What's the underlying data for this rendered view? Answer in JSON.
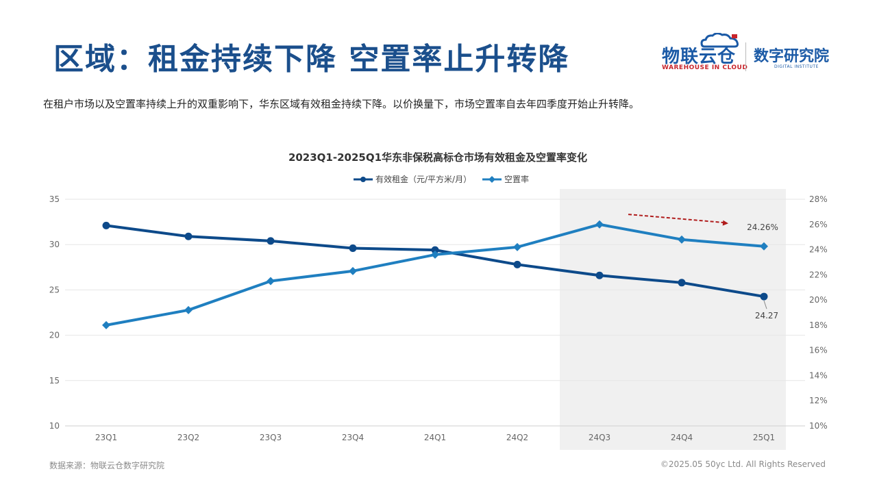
{
  "header": {
    "title": "区域：租金持续下降 空置率止升转降",
    "subtitle": "在租户市场以及空置率持续上升的双重影响下，华东区域有效租金持续下降。以价换量下，市场空置率自去年四季度开始止升转降。"
  },
  "logo": {
    "brand": "物联云仓",
    "brand_en": "WAREHOUSE IN CLOUD",
    "institute": "数字研究院",
    "institute_en": "DIGITAL INSTITUTE"
  },
  "chart_data": {
    "type": "line",
    "title": "2023Q1-2025Q1华东非保税高标仓市场有效租金及空置率变化",
    "categories": [
      "23Q1",
      "23Q2",
      "23Q3",
      "23Q4",
      "24Q1",
      "24Q2",
      "24Q3",
      "24Q4",
      "25Q1"
    ],
    "series": [
      {
        "name": "有效租金（元/平方米/月）",
        "axis": "left",
        "color": "#0d4a8a",
        "marker": "circle",
        "values": [
          32.1,
          30.9,
          30.4,
          29.6,
          29.4,
          27.8,
          26.6,
          25.8,
          24.27
        ]
      },
      {
        "name": "空置率",
        "axis": "right",
        "color": "#1f7fc0",
        "marker": "diamond",
        "values": [
          0.18,
          0.192,
          0.215,
          0.223,
          0.236,
          0.242,
          0.26,
          0.248,
          0.2426
        ]
      }
    ],
    "left_axis": {
      "min": 10,
      "max": 35,
      "ticks": [
        "10",
        "15",
        "20",
        "25",
        "30",
        "35"
      ]
    },
    "right_axis": {
      "min": 0.1,
      "max": 0.28,
      "ticks": [
        "10%",
        "12%",
        "14%",
        "16%",
        "18%",
        "20%",
        "22%",
        "24%",
        "26%",
        "28%"
      ]
    },
    "grid": true,
    "legend_position": "top-center",
    "highlight_categories": [
      "24Q3",
      "24Q4",
      "25Q1"
    ],
    "highlight_color": "#f0f0f0",
    "annotations": {
      "last_rent_label": "24.27",
      "last_vacancy_label": "24.26%",
      "trend_arrow_color": "#b01c1c"
    }
  },
  "footer": {
    "source": "数据来源：物联云仓数字研究院",
    "copyright": "©2025.05 50yc Ltd. All Rights Reserved"
  }
}
